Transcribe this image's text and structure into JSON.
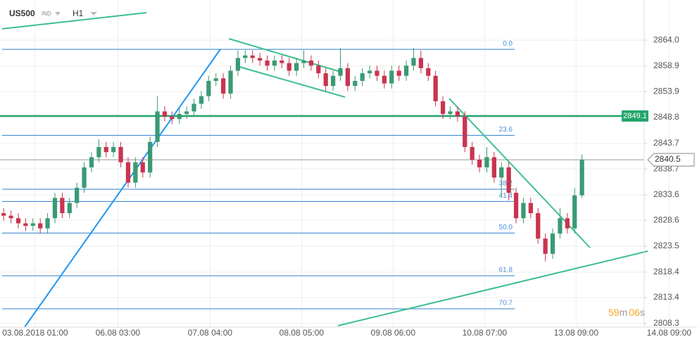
{
  "chart_data": {
    "type": "candlestick",
    "symbol": "US500",
    "instrument_type": "IND",
    "timeframe": "H1",
    "up_color": "#3a9a74",
    "down_color": "#c9344f",
    "open": [
      2830,
      2829.5,
      2829,
      2828,
      2827.5,
      2828,
      2827,
      2829,
      2833,
      2830,
      2832,
      2835,
      2839,
      2841,
      2843,
      2842,
      2843,
      2840,
      2836,
      2840,
      2838,
      2844,
      2850,
      2849,
      2848.5,
      2849.5,
      2850,
      2851.5,
      2853,
      2856,
      2856.5,
      2853.5,
      2858,
      2860.5,
      2861,
      2860.5,
      2860,
      2859,
      2860,
      2859.5,
      2858,
      2859.5,
      2860,
      2859,
      2857.5,
      2855,
      2857,
      2858.5,
      2855,
      2856,
      2857.5,
      2858,
      2857,
      2855.5,
      2858,
      2857,
      2859,
      2860.5,
      2858.5,
      2857,
      2852,
      2849.5,
      2850,
      2849,
      2843,
      2840.5,
      2839,
      2841,
      2837,
      2839,
      2834,
      2829,
      2832,
      2830,
      2825,
      2822,
      2826,
      2829,
      2827,
      2833.5
    ],
    "high": [
      2831,
      2830.5,
      2830,
      2829,
      2829,
      2829,
      2830,
      2834,
      2834,
      2833,
      2836,
      2840,
      2842,
      2844.5,
      2844,
      2844,
      2844,
      2841,
      2841,
      2841,
      2845,
      2853,
      2851,
      2850,
      2850.5,
      2851,
      2852.5,
      2854,
      2857,
      2857.5,
      2857.5,
      2859,
      2862,
      2862,
      2862,
      2861.5,
      2861,
      2861,
      2861,
      2860.5,
      2860.5,
      2862,
      2861,
      2860,
      2858.5,
      2858,
      2862.5,
      2859.5,
      2857,
      2858.5,
      2859,
      2859,
      2858,
      2859,
      2859,
      2860,
      2862.5,
      2862,
      2859.5,
      2858,
      2853,
      2851,
      2851,
      2850,
      2844,
      2841.5,
      2843,
      2842,
      2840,
      2840,
      2835,
      2833,
      2833,
      2831,
      2826,
      2827,
      2831,
      2830,
      2835,
      2841.5
    ],
    "low": [
      2828.5,
      2828,
      2827,
      2826.5,
      2826.5,
      2826,
      2826,
      2828,
      2829,
      2829,
      2831,
      2834,
      2838,
      2840,
      2841,
      2841,
      2839,
      2835,
      2835,
      2837,
      2837,
      2843,
      2848,
      2847.5,
      2847.5,
      2848.5,
      2849,
      2850.5,
      2852,
      2855,
      2852.5,
      2852.5,
      2857,
      2859.5,
      2859.5,
      2859,
      2858,
      2858,
      2858.5,
      2857,
      2857,
      2858.5,
      2858,
      2856.5,
      2854,
      2854,
      2856,
      2854,
      2854,
      2855,
      2856.5,
      2856,
      2854.5,
      2854.5,
      2856,
      2856,
      2858,
      2857.5,
      2856,
      2851,
      2848.5,
      2848.5,
      2848,
      2842,
      2839.5,
      2838,
      2838,
      2836,
      2833,
      2832.5,
      2828,
      2828,
      2829,
      2824,
      2820.5,
      2821,
      2825,
      2826,
      2826,
      2833
    ],
    "close": [
      2829.5,
      2829,
      2828,
      2827.5,
      2828,
      2827,
      2829,
      2833,
      2830,
      2832,
      2835,
      2839,
      2841,
      2843,
      2842,
      2843,
      2840,
      2836,
      2840,
      2838,
      2844,
      2850,
      2849,
      2848.5,
      2849.5,
      2850,
      2851.5,
      2853,
      2856,
      2856.5,
      2853.5,
      2858,
      2860.5,
      2861,
      2860.5,
      2860,
      2859,
      2860,
      2859.5,
      2858,
      2859.5,
      2860,
      2859,
      2857.5,
      2855,
      2857,
      2858.5,
      2855,
      2856,
      2857.5,
      2858,
      2857,
      2855.5,
      2858,
      2857,
      2859,
      2860.5,
      2858.5,
      2857,
      2852,
      2849.5,
      2850,
      2849,
      2843,
      2840.5,
      2839,
      2841,
      2837,
      2839,
      2834,
      2829,
      2832,
      2830,
      2825,
      2822,
      2826,
      2829,
      2827,
      2833.5,
      2840.5
    ],
    "xlim": [
      -0.5,
      87.5
    ],
    "ylim": [
      2807.6,
      2871.9
    ],
    "xticks": [
      {
        "value": 4.3,
        "label": "03.08.2018  01:00"
      },
      {
        "value": 15.6,
        "label": "06.08  03:00"
      },
      {
        "value": 28.2,
        "label": "07.08  04:00"
      },
      {
        "value": 40.7,
        "label": "08.08  05:00"
      },
      {
        "value": 53.2,
        "label": "09.08  06:00"
      },
      {
        "value": 65.7,
        "label": "10.08  07:00"
      },
      {
        "value": 78.2,
        "label": "13.08  09:00"
      },
      {
        "value": 90.9,
        "label": "14.08  09:00"
      }
    ],
    "yticks": [
      {
        "value": 2864,
        "label": "2864.0"
      },
      2858.9,
      2853.9,
      2848.8,
      2843.7,
      2838.7,
      2833.6,
      2828.6,
      2823.5,
      2818.4,
      2813.4,
      2808.3
    ],
    "grid": true,
    "fib_levels": [
      {
        "label": "0.0",
        "price": 2862.2
      },
      {
        "label": "23.6",
        "price": 2845.3
      },
      {
        "label": "38.2",
        "price": 2834.7
      },
      {
        "label": "41.4",
        "price": 2832.3
      },
      {
        "label": "50.0",
        "price": 2826.1
      },
      {
        "label": "61.8",
        "price": 2817.7
      },
      {
        "label": "70.7",
        "price": 2811.2
      }
    ],
    "level_line": 2849.1,
    "last_price": 2840.5,
    "timer": {
      "minutes": 59,
      "minutes_unit": "m",
      "seconds": "06",
      "seconds_unit": "s"
    }
  }
}
